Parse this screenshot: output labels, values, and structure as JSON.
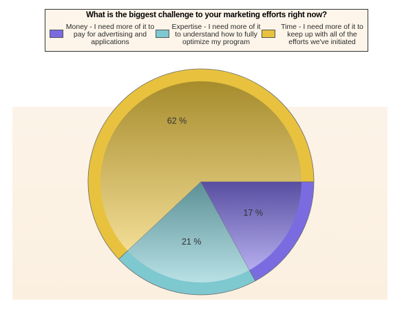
{
  "chart_data": {
    "type": "pie",
    "title": "What is the biggest challenge to your marketing efforts right now?",
    "legend_position": "top",
    "slices": [
      {
        "label": "Money - I need more of it to pay for advertising and applications",
        "value": 17,
        "display": "17 %",
        "color": "#7a6ce0"
      },
      {
        "label": "Expertise - I need more of it to understand how to fully optimize my program",
        "value": 21,
        "display": "21 %",
        "color": "#7ec8d0"
      },
      {
        "label": "Time - I need more of it to keep up with all of the efforts we've initiated",
        "value": 62,
        "display": "62 %",
        "color": "#e8c23e"
      }
    ]
  }
}
